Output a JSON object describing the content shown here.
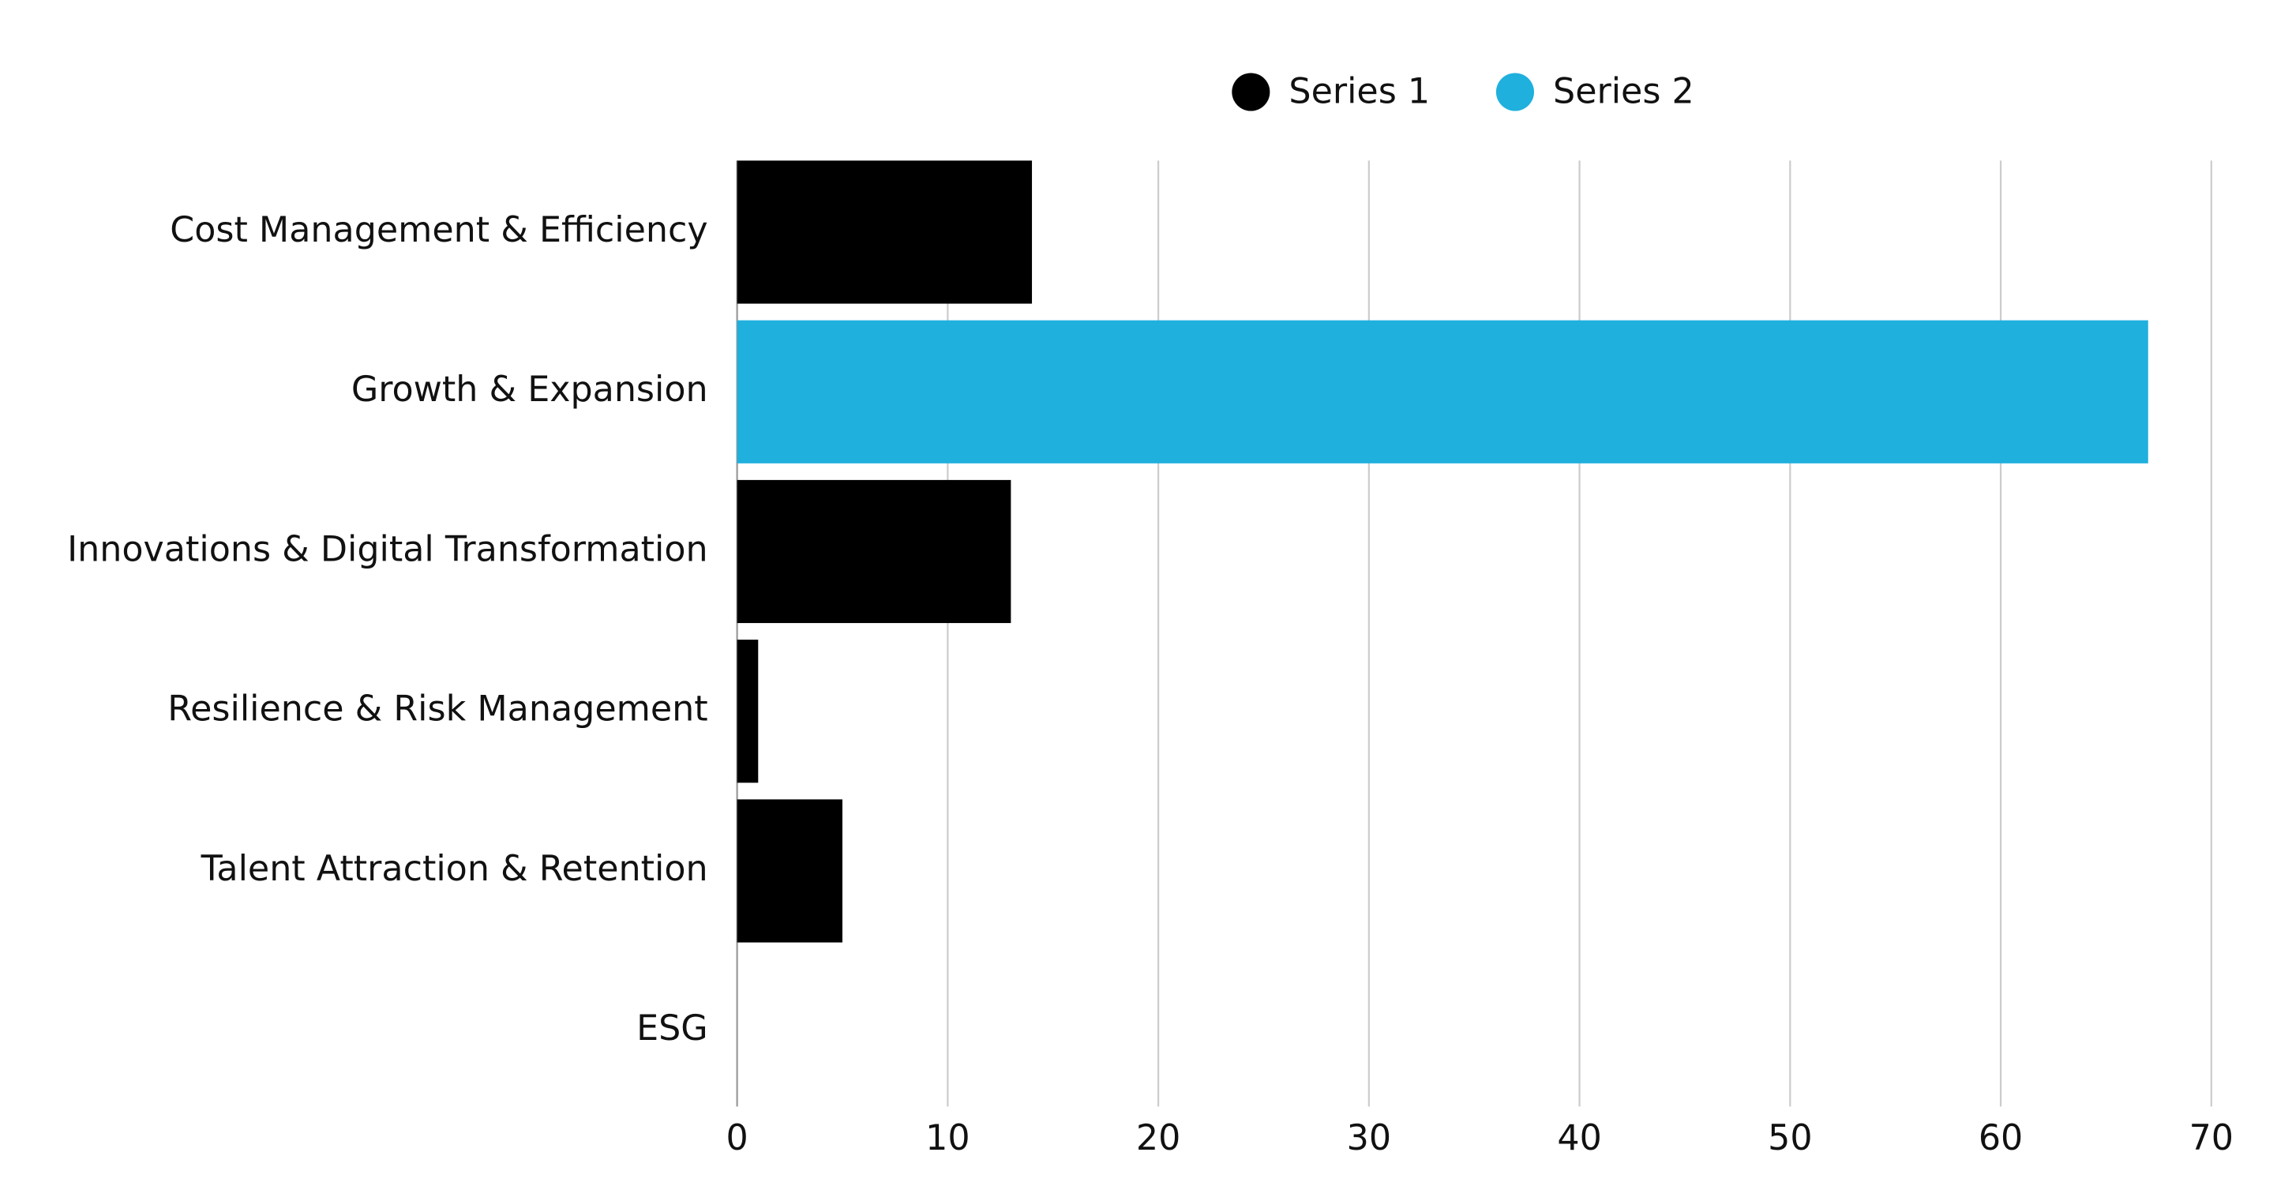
{
  "chart_data": {
    "type": "bar",
    "orientation": "horizontal",
    "stacked": true,
    "categories": [
      "Cost Management & Efficiency",
      "Growth & Expansion",
      "Innovations & Digital Transformation",
      "Resilience & Risk Management",
      "Talent Attraction & Retention",
      "ESG"
    ],
    "series": [
      {
        "name": "Series 1",
        "color": "#000000",
        "values": [
          14,
          0,
          13,
          1,
          5,
          0
        ]
      },
      {
        "name": "Series 2",
        "color": "#1fb0dd",
        "values": [
          0,
          67,
          0,
          0,
          0,
          0
        ]
      }
    ],
    "xlim": [
      0,
      70
    ],
    "xticks": [
      0,
      10,
      20,
      30,
      40,
      50,
      60,
      70
    ],
    "grid": true,
    "legend": "top"
  }
}
